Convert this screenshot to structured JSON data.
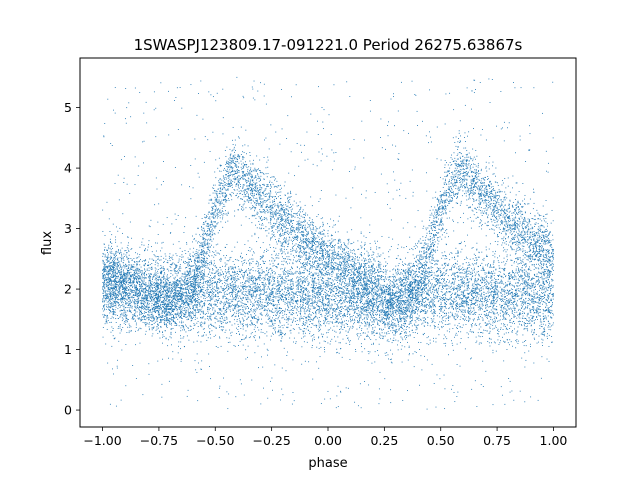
{
  "chart_data": {
    "type": "scatter",
    "title": "1SWASPJ123809.17-091221.0 Period 26275.63867s",
    "xlabel": "phase",
    "ylabel": "flux",
    "xlim": [
      -1.1,
      1.1
    ],
    "ylim": [
      -0.28,
      5.82
    ],
    "xticks": [
      -1.0,
      -0.75,
      -0.5,
      -0.25,
      0.0,
      0.25,
      0.5,
      0.75,
      1.0
    ],
    "xtick_labels": [
      "−1.00",
      "−0.75",
      "−0.50",
      "−0.25",
      "0.00",
      "0.25",
      "0.50",
      "0.75",
      "1.00"
    ],
    "yticks": [
      0,
      1,
      2,
      3,
      4,
      5
    ],
    "ytick_labels": [
      "0",
      "1",
      "2",
      "3",
      "4",
      "5"
    ],
    "grid": false,
    "marker_color": "#1f77b4",
    "series": [
      {
        "component": "baseline",
        "points_approx": 9000,
        "x_range": [
          -1.0,
          1.0
        ],
        "phase_vs_flux_mean": [
          [
            -1.0,
            2.0
          ],
          [
            -0.75,
            1.95
          ],
          [
            -0.5,
            1.9
          ],
          [
            -0.25,
            1.9
          ],
          [
            0.0,
            1.85
          ],
          [
            0.25,
            1.8
          ],
          [
            0.5,
            1.95
          ],
          [
            0.75,
            1.9
          ],
          [
            1.0,
            1.85
          ]
        ],
        "flux_spread": 0.35
      },
      {
        "component": "pulse",
        "points_approx": 7000,
        "shape_keypoints": [
          [
            -1.0,
            2.3
          ],
          [
            -0.7,
            1.7
          ],
          [
            -0.6,
            2.1
          ],
          [
            -0.5,
            3.3
          ],
          [
            -0.42,
            4.0
          ],
          [
            -0.3,
            3.5
          ],
          [
            -0.1,
            2.8
          ],
          [
            0.1,
            2.3
          ],
          [
            0.3,
            1.7
          ],
          [
            0.4,
            2.1
          ],
          [
            0.5,
            3.3
          ],
          [
            0.58,
            4.0
          ],
          [
            0.7,
            3.5
          ],
          [
            0.9,
            2.8
          ],
          [
            1.0,
            2.6
          ]
        ],
        "flux_spread": 0.25
      },
      {
        "component": "scatter-outliers",
        "points_approx": 900,
        "flux_range": [
          0.0,
          5.5
        ]
      }
    ]
  }
}
